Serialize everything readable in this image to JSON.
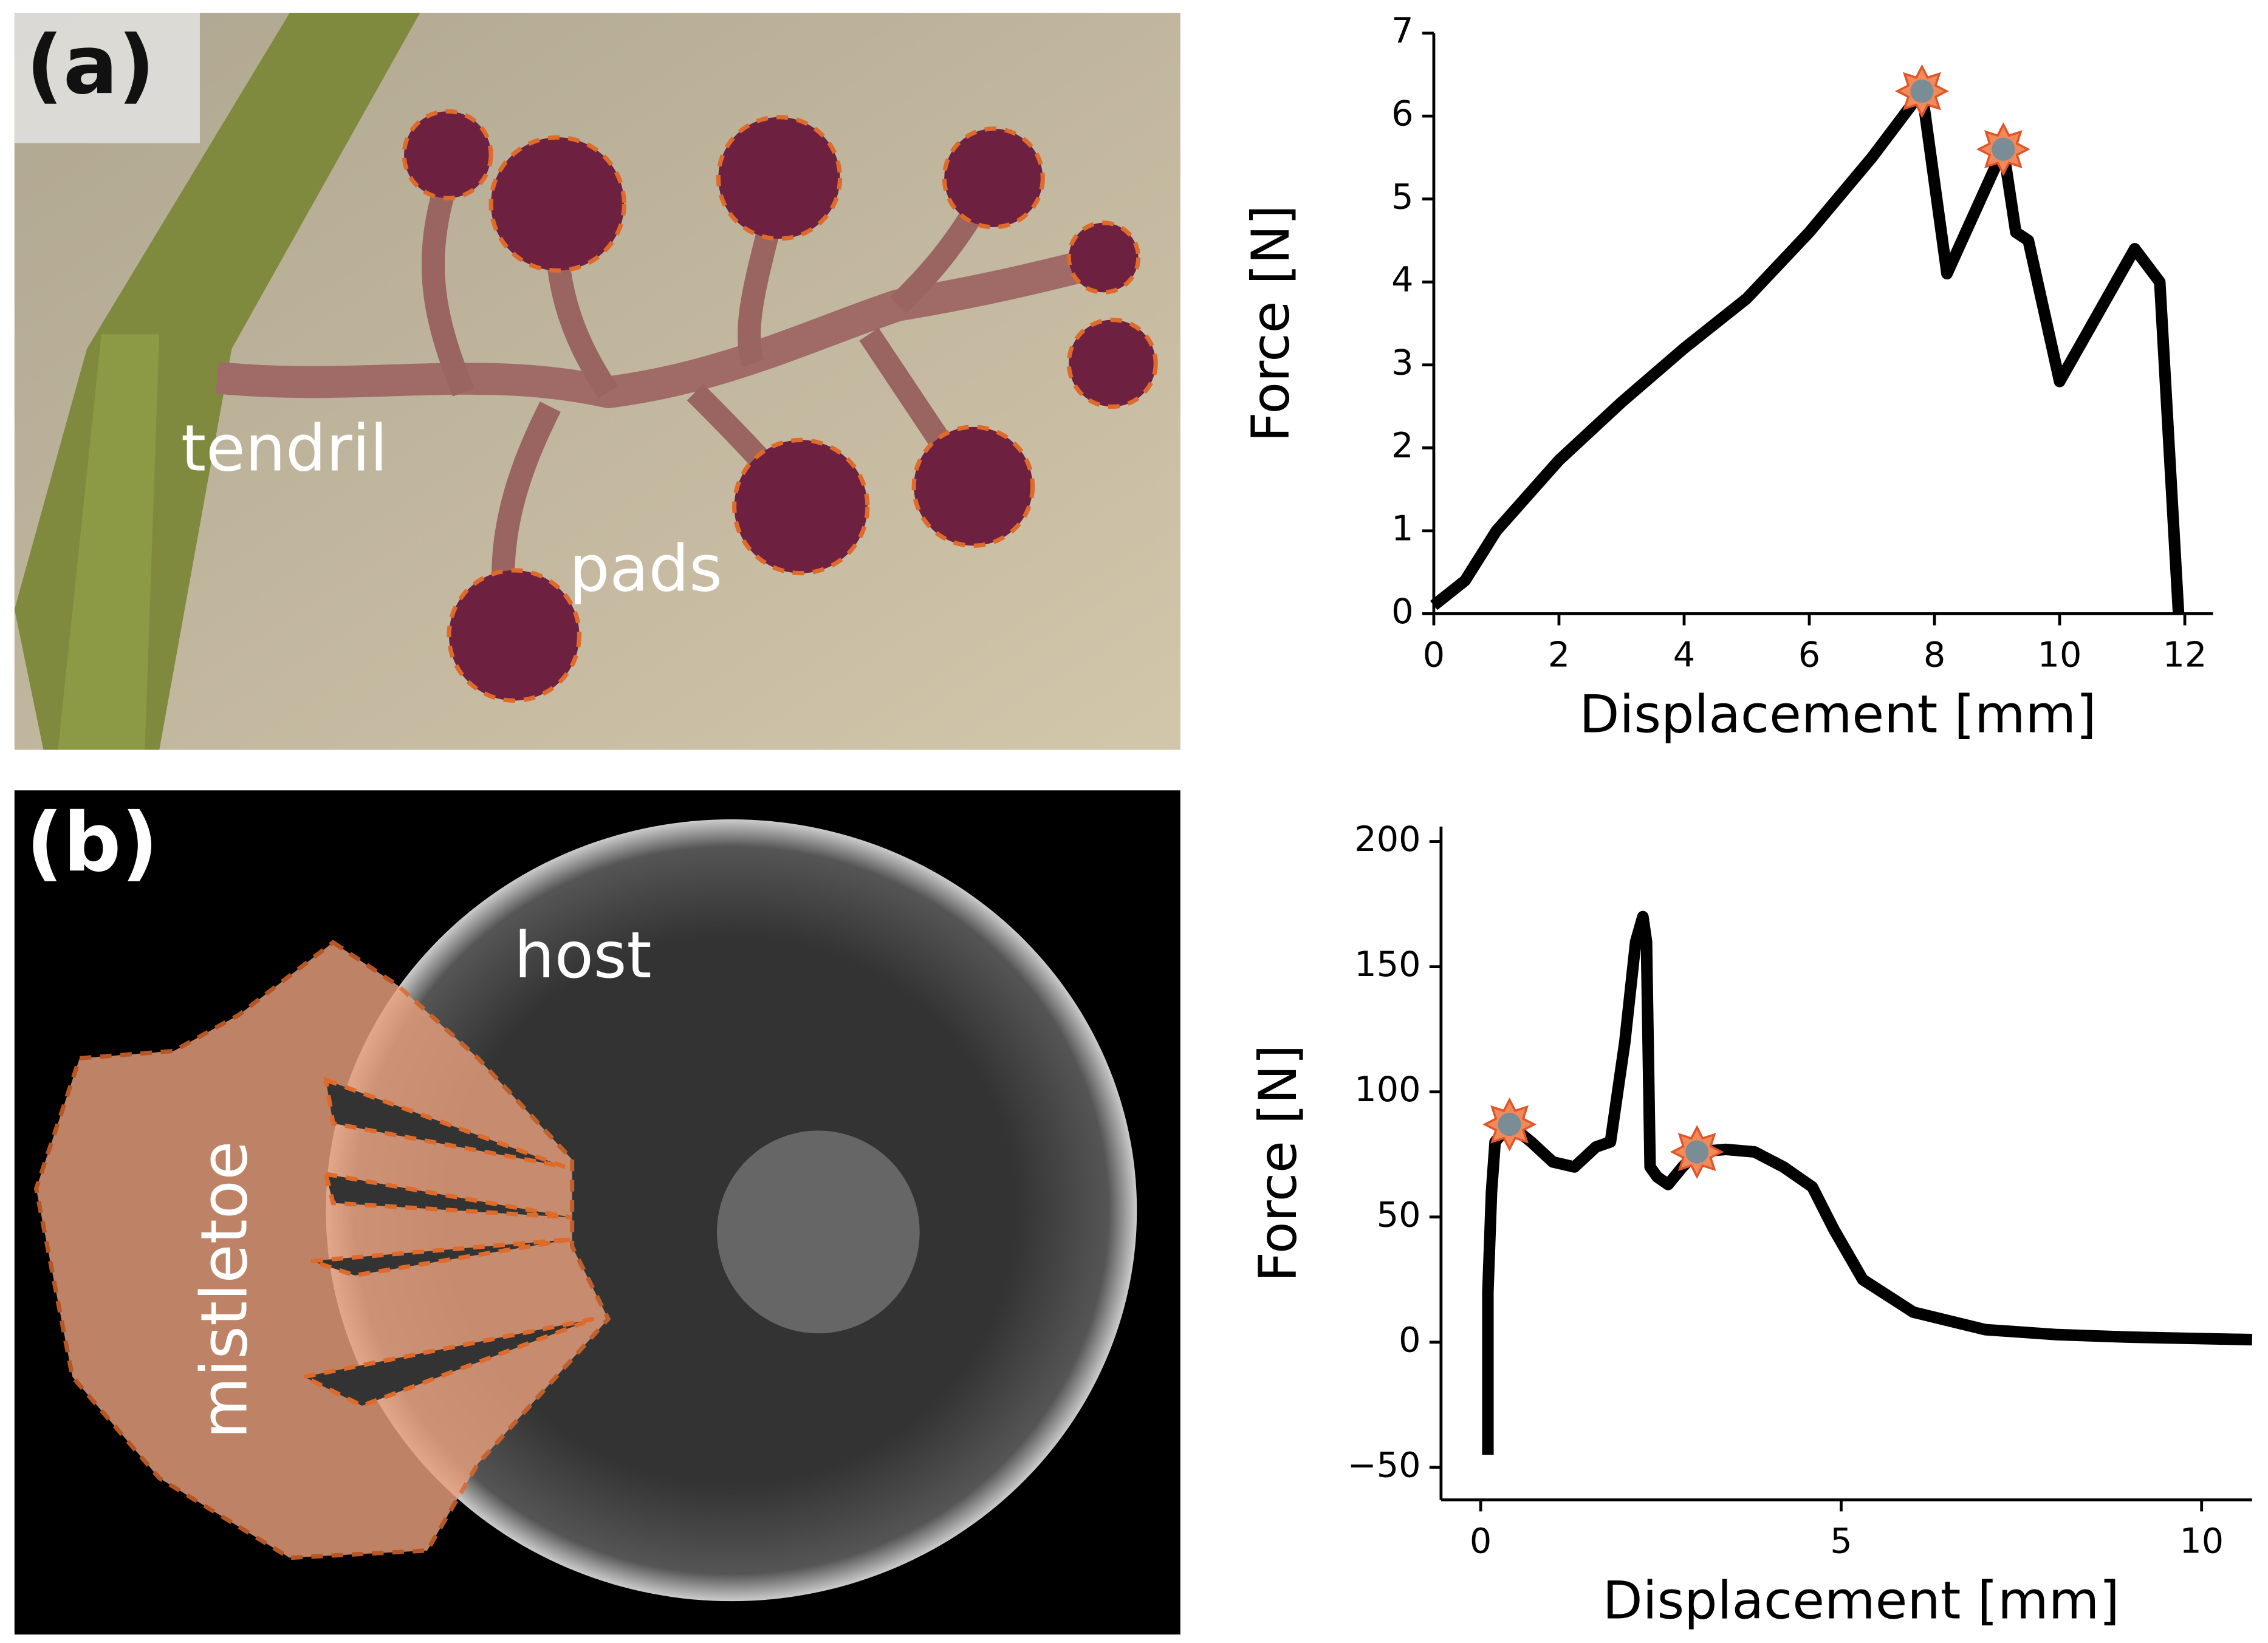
{
  "panels": [
    {
      "label": "(a)",
      "annotations": [
        "tendril",
        "pads"
      ]
    },
    {
      "label": "(b)",
      "annotations": [
        "host",
        "mistletoe"
      ]
    }
  ],
  "chart_data": [
    {
      "type": "line",
      "xlabel": "Displacement [mm]",
      "ylabel": "Force [N]",
      "color": "#000000",
      "x": [
        0,
        0.5,
        1,
        2,
        3,
        4,
        5,
        6,
        7,
        7.8,
        8.2,
        9.1,
        9.3,
        9.5,
        10,
        11.2,
        11.6,
        11.9
      ],
      "values": [
        0.1,
        0.4,
        1.0,
        1.85,
        2.55,
        3.2,
        3.8,
        4.6,
        5.5,
        6.3,
        4.1,
        5.6,
        4.6,
        4.5,
        2.8,
        4.4,
        4.0,
        0
      ],
      "peaks_x": [
        7.8,
        9.1
      ],
      "peaks_y": [
        6.3,
        5.6
      ],
      "xlim": [
        0,
        12.45
      ],
      "xticks": [
        0,
        2,
        4,
        6,
        8,
        10,
        12
      ],
      "ylim": [
        0,
        7
      ],
      "yticks": [
        0,
        1,
        2,
        3,
        4,
        5,
        6,
        7
      ]
    },
    {
      "type": "line",
      "xlabel": "Displacement [mm]",
      "ylabel": "Force [N]",
      "color": "#000000",
      "x": [
        0.1,
        0.1,
        0.15,
        0.2,
        0.4,
        0.7,
        1,
        1.3,
        1.6,
        1.8,
        1.9,
        2.0,
        2.15,
        2.25,
        2.3,
        2.35,
        2.45,
        2.6,
        2.8,
        3.0,
        3.4,
        3.8,
        4.2,
        4.6,
        4.9,
        5.3,
        6,
        7,
        8,
        9,
        10.7
      ],
      "values": [
        -45,
        20,
        60,
        80,
        87,
        80,
        72,
        70,
        78,
        80,
        100,
        120,
        160,
        170,
        160,
        70,
        66,
        63,
        70,
        76,
        77,
        76,
        70,
        62,
        45,
        25,
        12,
        5,
        3,
        2,
        1
      ],
      "peaks_x": [
        0.4,
        3.0
      ],
      "peaks_y": [
        87,
        76
      ],
      "xlim": [
        -0.55,
        10.7
      ],
      "xticks": [
        0,
        5,
        10
      ],
      "ylim": [
        -63,
        206
      ],
      "yticks": [
        {
          "value": -50,
          "label": "−50"
        },
        0,
        50,
        100,
        150,
        200
      ]
    }
  ]
}
